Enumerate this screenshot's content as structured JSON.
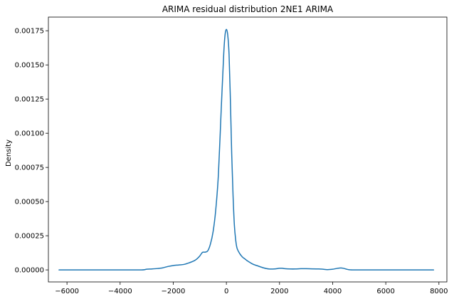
{
  "chart_data": {
    "type": "line",
    "title": "ARIMA residual distribution 2NE1 ARIMA",
    "xlabel": "",
    "ylabel": "Density",
    "xlim": [
      -6700,
      8300
    ],
    "ylim": [
      -8.8e-05,
      0.00185
    ],
    "x_ticks": [
      -6000,
      -4000,
      -2000,
      0,
      2000,
      4000,
      6000,
      8000
    ],
    "x_tick_labels": [
      "−6000",
      "−4000",
      "−2000",
      "0",
      "2000",
      "4000",
      "6000",
      "8000"
    ],
    "y_ticks": [
      0,
      0.00025,
      0.0005,
      0.00075,
      0.001,
      0.00125,
      0.0015,
      0.00175
    ],
    "y_tick_labels": [
      "0.00000",
      "0.00025",
      "0.00050",
      "0.00075",
      "0.00100",
      "0.00125",
      "0.00150",
      "0.00175"
    ],
    "grid": false,
    "legend": "none",
    "series": [
      {
        "color": "#1f77b4",
        "x": [
          -6300,
          -5000,
          -4000,
          -3200,
          -3000,
          -2800,
          -2600,
          -2400,
          -2200,
          -2000,
          -1800,
          -1600,
          -1400,
          -1200,
          -1100,
          -1000,
          -900,
          -800,
          -700,
          -600,
          -500,
          -400,
          -300,
          -200,
          -100,
          -50,
          0,
          50,
          100,
          150,
          200,
          250,
          300,
          350,
          400,
          500,
          600,
          700,
          800,
          1000,
          1200,
          1400,
          1600,
          1800,
          2000,
          2100,
          2200,
          2400,
          2600,
          2800,
          3000,
          3200,
          3400,
          3600,
          3800,
          4000,
          4200,
          4300,
          4400,
          4600,
          4800,
          5000,
          6000,
          7000,
          7800
        ],
        "y": [
          0,
          0,
          0,
          0,
          5e-06,
          7e-06,
          1e-05,
          1.5e-05,
          2.5e-05,
          3.2e-05,
          3.6e-05,
          4e-05,
          5.2e-05,
          6.8e-05,
          8.2e-05,
          0.000102,
          0.000128,
          0.00013,
          0.00014,
          0.00019,
          0.00028,
          0.00044,
          0.0007,
          0.00115,
          0.00158,
          0.00172,
          0.00176,
          0.00172,
          0.00158,
          0.00125,
          0.00085,
          0.00055,
          0.00033,
          0.00022,
          0.00016,
          0.00012,
          9.5e-05,
          8e-05,
          6.5e-05,
          4.2e-05,
          2.8e-05,
          1.5e-05,
          7e-06,
          7e-06,
          1.2e-05,
          1.2e-05,
          9e-06,
          7e-06,
          7e-06,
          9e-06,
          9e-06,
          8e-06,
          7e-06,
          6e-06,
          2e-06,
          5e-06,
          1.2e-05,
          1.4e-05,
          1.2e-05,
          2e-06,
          0,
          0,
          0,
          0,
          0
        ]
      }
    ]
  }
}
